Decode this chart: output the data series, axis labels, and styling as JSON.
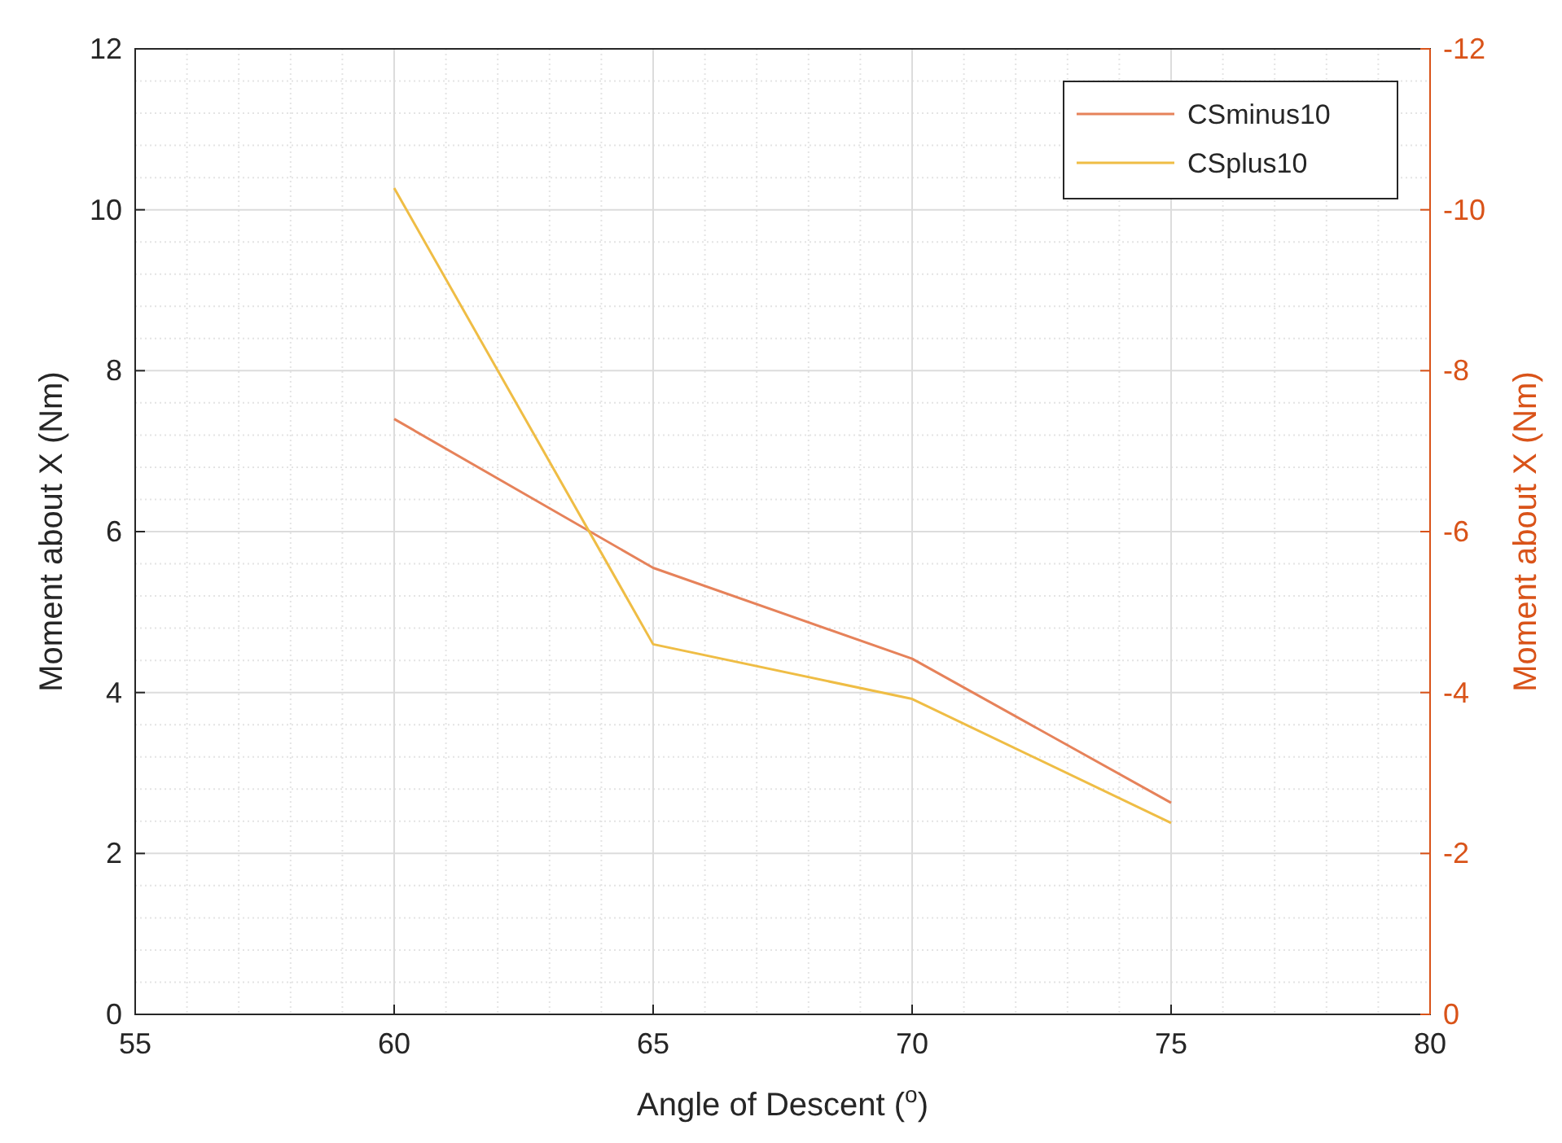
{
  "chart_data": {
    "type": "line",
    "x": [
      60,
      65,
      70,
      75
    ],
    "series": [
      {
        "name": "CSminus10",
        "color": "#e6825a",
        "values": [
          7.4,
          5.55,
          4.42,
          2.63
        ]
      },
      {
        "name": "CSplus10",
        "color": "#efbd45",
        "values": [
          10.27,
          4.6,
          3.92,
          2.38
        ]
      }
    ],
    "xlabel": "Angle of Descent ($^{o}$)",
    "ylabel": "Moment about X (Nm)",
    "y2label": "Moment about X (Nm)",
    "xlim": [
      55,
      80
    ],
    "xticks": [
      55,
      60,
      65,
      70,
      75,
      80
    ],
    "ylim": [
      0,
      12
    ],
    "yticks": [
      0,
      2,
      4,
      6,
      8,
      10,
      12
    ],
    "y2lim": [
      0,
      -12
    ],
    "y2ticks": [
      0,
      -2,
      -4,
      -6,
      -8,
      -10,
      -12
    ],
    "grid": true,
    "legend": "top right",
    "marker": "none",
    "line_style": "solid"
  }
}
